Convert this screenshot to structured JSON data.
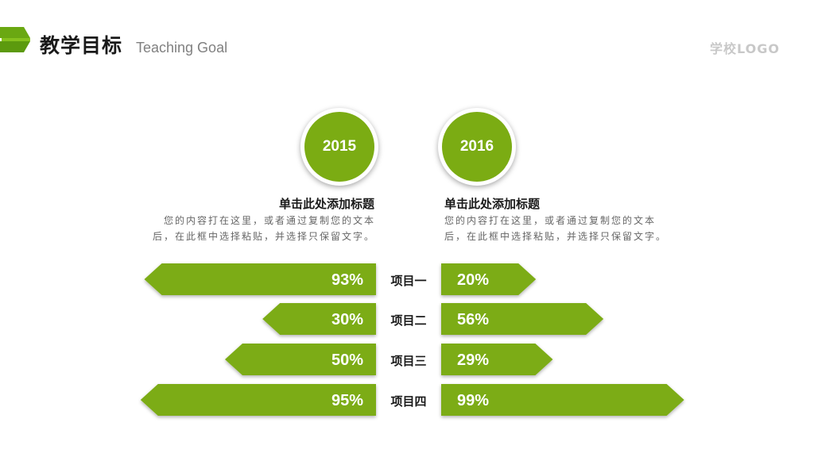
{
  "header": {
    "title": "教学目标",
    "subtitle": "Teaching Goal",
    "school_logo": "学校LOGO"
  },
  "colors": {
    "accent": "#7bac13",
    "logo_mark": "#6aa812"
  },
  "columns": [
    {
      "year": "2015",
      "heading": "单击此处添加标题",
      "body_line1": "您的内容打在这里，或者通过复制您的文本",
      "body_line2": "后，在此框中选择粘贴，并选择只保留文字。"
    },
    {
      "year": "2016",
      "heading": "单击此处添加标题",
      "body_line1": "您的内容打在这里，或者通过复制您的文本",
      "body_line2": "后，在此框中选择粘贴，并选择只保留文字。"
    }
  ],
  "chart_data": {
    "type": "bar",
    "categories": [
      "项目一",
      "项目二",
      "项目三",
      "项目四"
    ],
    "series": [
      {
        "values": [
          93,
          30,
          50,
          95
        ],
        "labels": [
          "93%",
          "30%",
          "50%",
          "95%"
        ]
      },
      {
        "values": [
          20,
          56,
          29,
          99
        ],
        "labels": [
          "20%",
          "56%",
          "29%",
          "99%"
        ]
      }
    ],
    "unit": "%",
    "ylim": [
      0,
      100
    ],
    "legend": "none",
    "grid": false
  }
}
